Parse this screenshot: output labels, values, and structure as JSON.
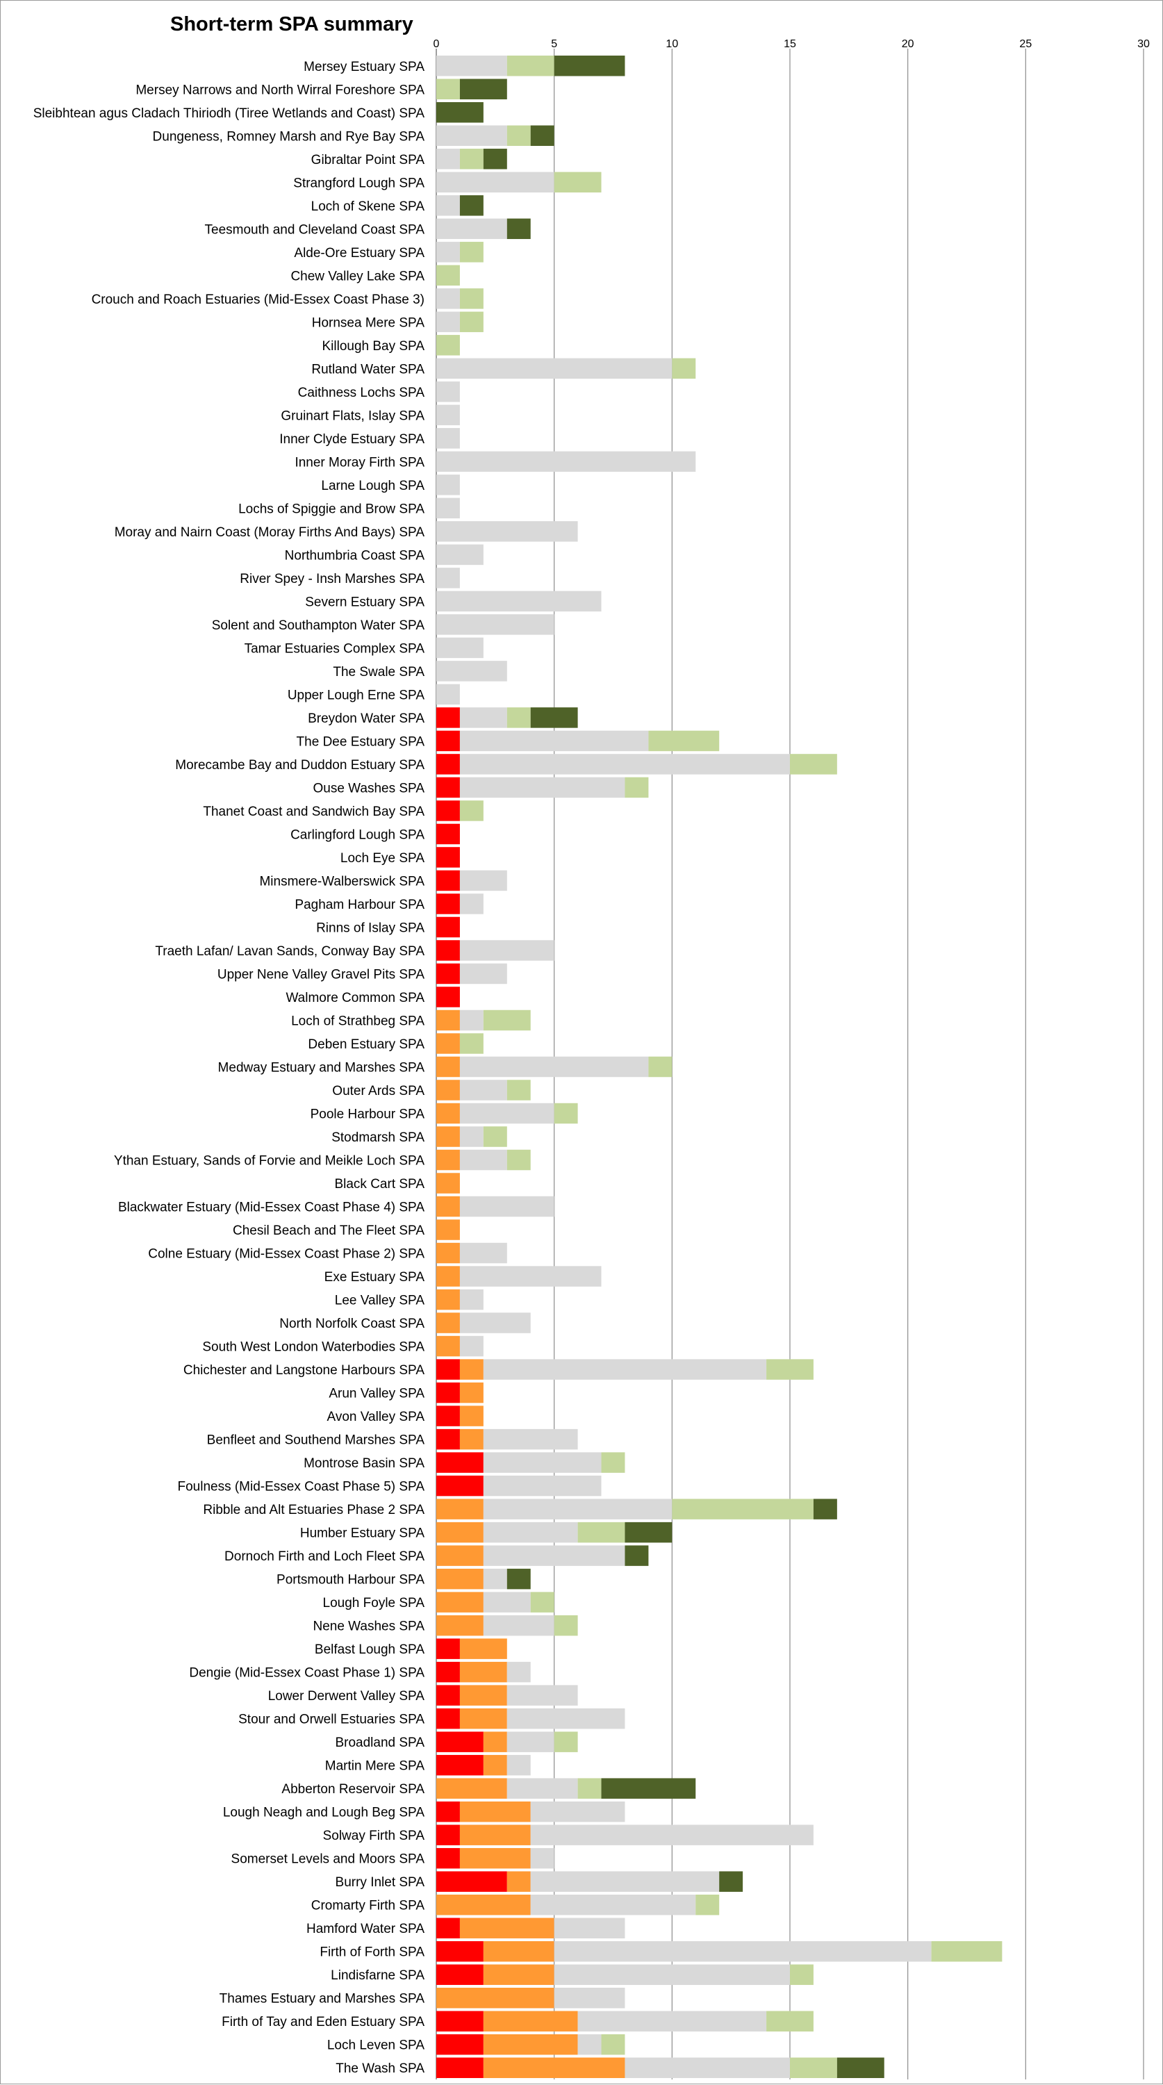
{
  "chart_data": {
    "type": "bar",
    "orientation": "horizontal",
    "stacked": true,
    "title": "Short-term SPA summary",
    "xlim": [
      0,
      30
    ],
    "xticks": [
      0,
      5,
      10,
      15,
      20,
      25,
      30
    ],
    "grid": true,
    "legend": "none",
    "categories": [
      "Mersey Estuary SPA",
      "Mersey Narrows and North Wirral Foreshore SPA",
      "Sleibhtean agus Cladach Thiriodh (Tiree Wetlands and Coast) SPA",
      "Dungeness, Romney Marsh and Rye Bay SPA",
      "Gibraltar Point SPA",
      "Strangford Lough SPA",
      "Loch of Skene SPA",
      "Teesmouth and Cleveland Coast SPA",
      "Alde-Ore Estuary SPA",
      "Chew Valley Lake SPA",
      "Crouch and Roach Estuaries (Mid-Essex Coast Phase 3)",
      "Hornsea Mere SPA",
      "Killough Bay SPA",
      "Rutland Water SPA",
      "Caithness Lochs SPA",
      "Gruinart Flats, Islay SPA",
      "Inner Clyde Estuary SPA",
      "Inner Moray Firth SPA",
      "Larne Lough SPA",
      "Lochs of Spiggie and Brow SPA",
      "Moray and Nairn Coast (Moray Firths And Bays) SPA",
      "Northumbria Coast SPA",
      "River Spey - Insh Marshes SPA",
      "Severn Estuary SPA",
      "Solent and Southampton Water SPA",
      "Tamar Estuaries Complex SPA",
      "The Swale SPA",
      "Upper Lough Erne SPA",
      "Breydon Water SPA",
      "The Dee Estuary SPA",
      "Morecambe Bay and Duddon Estuary SPA",
      "Ouse Washes SPA",
      "Thanet Coast and Sandwich Bay SPA",
      "Carlingford Lough SPA",
      "Loch Eye SPA",
      "Minsmere-Walberswick SPA",
      "Pagham Harbour SPA",
      "Rinns of Islay SPA",
      "Traeth Lafan/ Lavan Sands, Conway Bay SPA",
      "Upper Nene Valley Gravel Pits SPA",
      "Walmore Common SPA",
      "Loch of Strathbeg SPA",
      "Deben Estuary SPA",
      "Medway Estuary and Marshes SPA",
      "Outer Ards SPA",
      "Poole Harbour SPA",
      "Stodmarsh SPA",
      "Ythan Estuary, Sands of Forvie and Meikle Loch SPA",
      "Black Cart SPA",
      "Blackwater Estuary (Mid-Essex Coast Phase 4) SPA",
      "Chesil Beach and The Fleet SPA",
      "Colne Estuary (Mid-Essex Coast Phase 2) SPA",
      "Exe Estuary SPA",
      "Lee Valley SPA",
      "North Norfolk Coast SPA",
      "South West London Waterbodies SPA",
      "Chichester and Langstone Harbours SPA",
      "Arun Valley SPA",
      "Avon Valley SPA",
      "Benfleet and Southend Marshes SPA",
      "Montrose Basin SPA",
      "Foulness (Mid-Essex Coast Phase 5) SPA",
      "Ribble and Alt Estuaries Phase 2 SPA",
      "Humber Estuary SPA",
      "Dornoch Firth and Loch Fleet SPA",
      "Portsmouth Harbour SPA",
      "Lough Foyle SPA",
      "Nene Washes SPA",
      "Belfast Lough SPA",
      "Dengie (Mid-Essex Coast Phase 1) SPA",
      "Lower Derwent Valley SPA",
      "Stour and Orwell Estuaries SPA",
      "Broadland SPA",
      "Martin Mere SPA",
      "Abberton Reservoir SPA",
      "Lough Neagh and Lough Beg SPA",
      "Solway Firth SPA",
      "Somerset Levels and Moors SPA",
      "Burry Inlet SPA",
      "Cromarty Firth SPA",
      "Hamford Water SPA",
      "Firth of Forth SPA",
      "Lindisfarne SPA",
      "Thames Estuary and Marshes SPA",
      "Firth of Tay and Eden Estuary SPA",
      "Loch Leven SPA",
      "The Wash SPA"
    ],
    "series": [
      {
        "color": "#ff0000",
        "values": [
          0,
          0,
          0,
          0,
          0,
          0,
          0,
          0,
          0,
          0,
          0,
          0,
          0,
          0,
          0,
          0,
          0,
          0,
          0,
          0,
          0,
          0,
          0,
          0,
          0,
          0,
          0,
          0,
          1,
          1,
          1,
          1,
          1,
          1,
          1,
          1,
          1,
          1,
          1,
          1,
          1,
          0,
          0,
          0,
          0,
          0,
          0,
          0,
          0,
          0,
          0,
          0,
          0,
          0,
          0,
          0,
          1,
          1,
          1,
          1,
          2,
          2,
          0,
          0,
          0,
          0,
          0,
          0,
          1,
          1,
          1,
          1,
          2,
          2,
          0,
          1,
          1,
          1,
          3,
          0,
          1,
          2,
          2,
          0,
          2,
          2,
          2
        ]
      },
      {
        "color": "#ff9933",
        "values": [
          0,
          0,
          0,
          0,
          0,
          0,
          0,
          0,
          0,
          0,
          0,
          0,
          0,
          0,
          0,
          0,
          0,
          0,
          0,
          0,
          0,
          0,
          0,
          0,
          0,
          0,
          0,
          0,
          0,
          0,
          0,
          0,
          0,
          0,
          0,
          0,
          0,
          0,
          0,
          0,
          0,
          1,
          1,
          1,
          1,
          1,
          1,
          1,
          1,
          1,
          1,
          1,
          1,
          1,
          1,
          1,
          1,
          1,
          1,
          1,
          0,
          0,
          2,
          2,
          2,
          2,
          2,
          2,
          2,
          2,
          2,
          2,
          1,
          1,
          3,
          3,
          3,
          3,
          1,
          4,
          4,
          3,
          3,
          5,
          4,
          4,
          6
        ]
      },
      {
        "color": "#d9d9d9",
        "values": [
          3,
          0,
          0,
          3,
          1,
          5,
          1,
          3,
          1,
          0,
          1,
          1,
          0,
          10,
          1,
          1,
          1,
          11,
          1,
          1,
          6,
          2,
          1,
          7,
          5,
          2,
          3,
          1,
          2,
          8,
          14,
          7,
          0,
          0,
          0,
          2,
          1,
          0,
          4,
          2,
          0,
          1,
          0,
          8,
          2,
          4,
          1,
          2,
          0,
          4,
          0,
          2,
          6,
          1,
          3,
          1,
          12,
          0,
          0,
          4,
          5,
          5,
          8,
          4,
          6,
          1,
          2,
          3,
          0,
          1,
          3,
          5,
          2,
          1,
          3,
          4,
          12,
          1,
          8,
          7,
          3,
          16,
          10,
          3,
          8,
          1,
          7
        ]
      },
      {
        "color": "#c4d79b",
        "values": [
          2,
          1,
          0,
          1,
          1,
          2,
          0,
          0,
          1,
          1,
          1,
          1,
          1,
          1,
          0,
          0,
          0,
          0,
          0,
          0,
          0,
          0,
          0,
          0,
          0,
          0,
          0,
          0,
          1,
          3,
          2,
          1,
          1,
          0,
          0,
          0,
          0,
          0,
          0,
          0,
          0,
          2,
          1,
          1,
          1,
          1,
          1,
          1,
          0,
          0,
          0,
          0,
          0,
          0,
          0,
          0,
          2,
          0,
          0,
          0,
          1,
          0,
          6,
          2,
          0,
          0,
          1,
          1,
          0,
          0,
          0,
          0,
          1,
          0,
          1,
          0,
          0,
          0,
          0,
          1,
          0,
          3,
          1,
          0,
          2,
          1,
          2
        ]
      },
      {
        "color": "#4f6228",
        "values": [
          3,
          2,
          2,
          1,
          1,
          0,
          1,
          1,
          0,
          0,
          0,
          0,
          0,
          0,
          0,
          0,
          0,
          0,
          0,
          0,
          0,
          0,
          0,
          0,
          0,
          0,
          0,
          0,
          2,
          0,
          0,
          0,
          0,
          0,
          0,
          0,
          0,
          0,
          0,
          0,
          0,
          0,
          0,
          0,
          0,
          0,
          0,
          0,
          0,
          0,
          0,
          0,
          0,
          0,
          0,
          0,
          0,
          0,
          0,
          0,
          0,
          0,
          1,
          2,
          1,
          1,
          0,
          0,
          0,
          0,
          0,
          0,
          0,
          0,
          4,
          0,
          0,
          0,
          1,
          0,
          0,
          0,
          0,
          0,
          0,
          0,
          2
        ]
      }
    ]
  }
}
